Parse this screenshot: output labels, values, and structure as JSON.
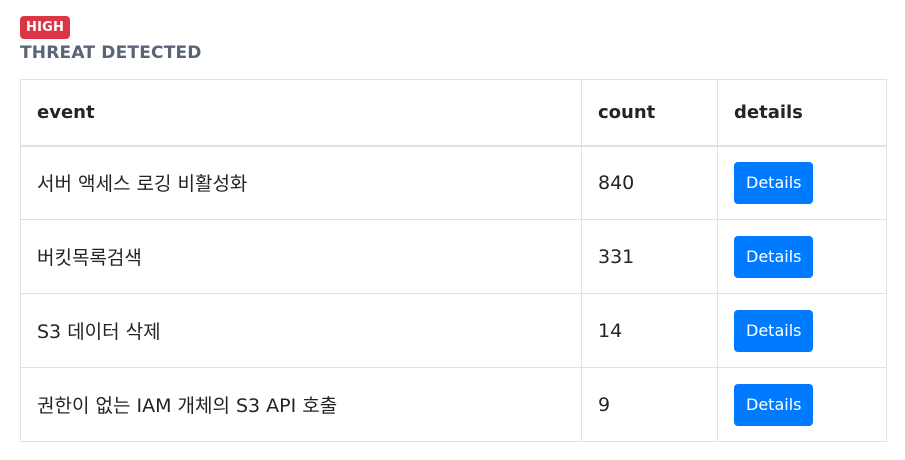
{
  "severity": {
    "label": "HIGH",
    "color": "#dc3545"
  },
  "heading": "THREAT DETECTED",
  "table": {
    "columns": [
      "event",
      "count",
      "details"
    ],
    "rows": [
      {
        "event": "서버 액세스 로깅 비활성화",
        "count": "840",
        "details_label": "Details"
      },
      {
        "event": "버킷목록검색",
        "count": "331",
        "details_label": "Details"
      },
      {
        "event": "S3 데이터 삭제",
        "count": "14",
        "details_label": "Details"
      },
      {
        "event": "권한이 없는 IAM 개체의 S3 API 호출",
        "count": "9",
        "details_label": "Details"
      }
    ]
  },
  "colors": {
    "button": "#007bff",
    "heading": "#5a6478",
    "border": "#dee2e6"
  }
}
